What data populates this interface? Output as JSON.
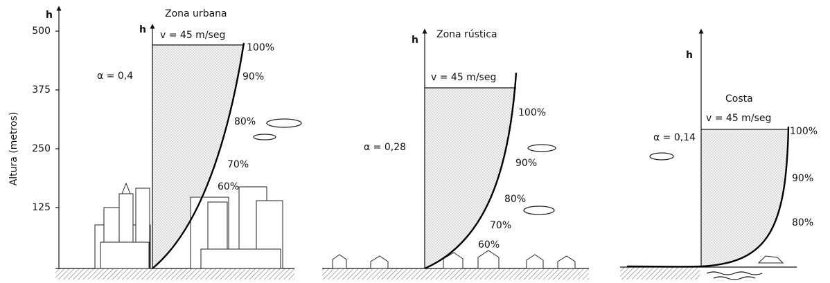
{
  "axis": {
    "label": "h",
    "title": "Altura (metros)",
    "ticks": [
      500,
      375,
      250,
      125
    ]
  },
  "panels": [
    {
      "title": "Zona urbana",
      "axis_label": "h",
      "speed": "v = 45 m/seg",
      "alpha": "α = 0,4",
      "percentages": [
        "100%",
        "90%",
        "80%",
        "70%",
        "60%"
      ]
    },
    {
      "title": "Zona rústica",
      "axis_label": "h",
      "speed": "v = 45 m/seg",
      "alpha": "α = 0,28",
      "percentages": [
        "100%",
        "90%",
        "80%",
        "70%",
        "60%"
      ]
    },
    {
      "title": "Costa",
      "axis_label": "h",
      "speed": "v = 45 m/seg",
      "alpha": "α = 0,14",
      "percentages": [
        "100%",
        "90%",
        "80%"
      ]
    }
  ]
}
